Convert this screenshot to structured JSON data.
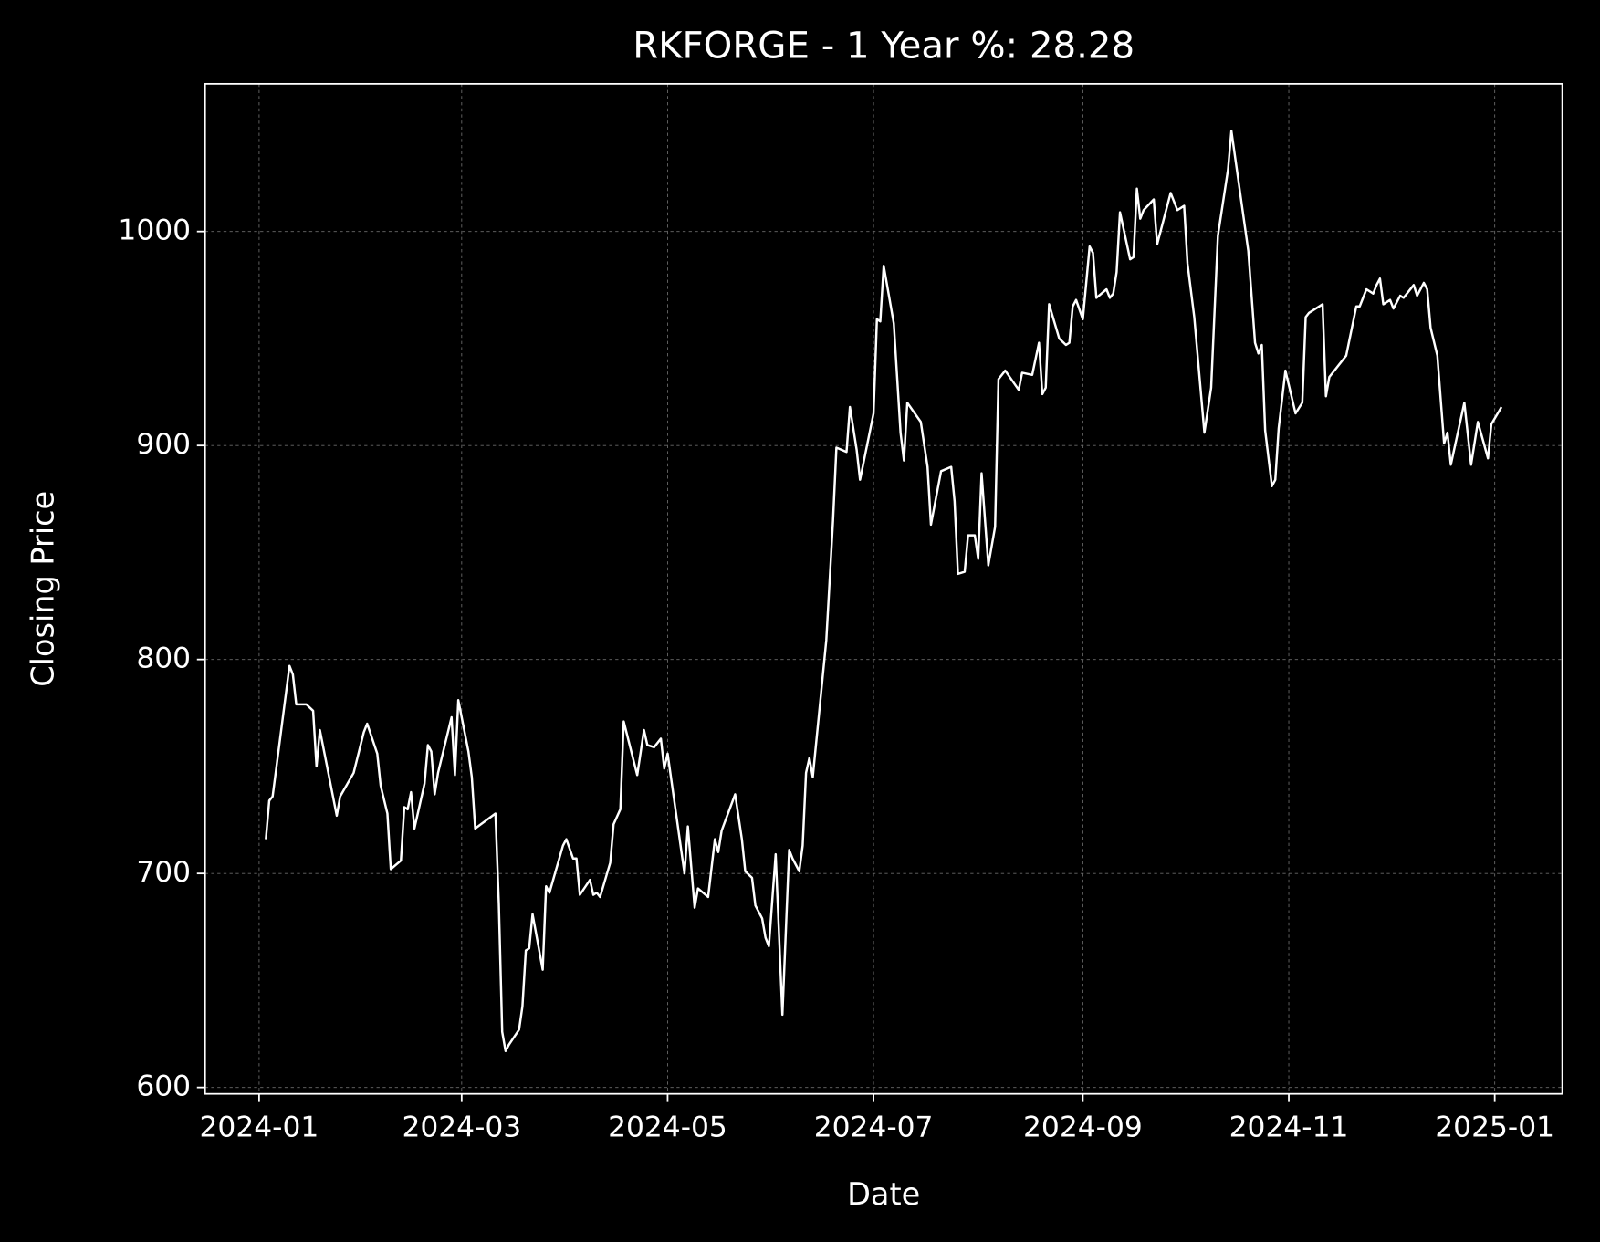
{
  "chart_data": {
    "type": "line",
    "title": "RKFORGE - 1 Year %: 28.28",
    "x_label": "Date",
    "y_label": "Closing Price",
    "color": "#ffffff",
    "grid": true,
    "xlim": [
      -16,
      386
    ],
    "ylim": [
      597,
      1069
    ],
    "xticks": [
      {
        "value": 0,
        "label": "2024-01"
      },
      {
        "value": 60,
        "label": "2024-03"
      },
      {
        "value": 121,
        "label": "2024-05"
      },
      {
        "value": 182,
        "label": "2024-07"
      },
      {
        "value": 244,
        "label": "2024-09"
      },
      {
        "value": 305,
        "label": "2024-11"
      },
      {
        "value": 366,
        "label": "2025-01"
      }
    ],
    "yticks": [
      600,
      700,
      800,
      900,
      1000
    ],
    "x": [
      2,
      3,
      4,
      9,
      10,
      11,
      14,
      16,
      17,
      18,
      23,
      24,
      28,
      31,
      32,
      35,
      36,
      38,
      39,
      42,
      43,
      44,
      45,
      46,
      49,
      50,
      51,
      52,
      53,
      57,
      58,
      59,
      62,
      63,
      64,
      70,
      71,
      72,
      73,
      74,
      77,
      78,
      79,
      80,
      81,
      84,
      85,
      86,
      90,
      91,
      93,
      94,
      95,
      98,
      99,
      100,
      101,
      104,
      105,
      107,
      108,
      112,
      114,
      115,
      117,
      119,
      120,
      121,
      126,
      127,
      129,
      130,
      133,
      135,
      136,
      137,
      141,
      143,
      144,
      146,
      147,
      149,
      150,
      151,
      153,
      155,
      157,
      158,
      160,
      161,
      162,
      163,
      164,
      168,
      170,
      171,
      174,
      175,
      177,
      178,
      182,
      183,
      184,
      185,
      188,
      190,
      191,
      192,
      196,
      198,
      199,
      202,
      205,
      206,
      207,
      209,
      210,
      212,
      213,
      214,
      216,
      218,
      219,
      221,
      225,
      226,
      229,
      231,
      232,
      233,
      234,
      237,
      239,
      240,
      241,
      242,
      244,
      246,
      247,
      248,
      251,
      252,
      253,
      254,
      255,
      258,
      259,
      260,
      261,
      262,
      265,
      266,
      270,
      272,
      274,
      275,
      277,
      280,
      282,
      284,
      287,
      288,
      293,
      295,
      296,
      297,
      298,
      300,
      301,
      302,
      304,
      307,
      309,
      310,
      311,
      315,
      316,
      317,
      322,
      325,
      326,
      328,
      330,
      331,
      332,
      333,
      335,
      336,
      338,
      339,
      342,
      343,
      345,
      346,
      347,
      349,
      351,
      352,
      353,
      357,
      359,
      361,
      364,
      365,
      368
    ],
    "values": [
      716,
      734,
      736,
      797,
      793,
      779,
      779,
      776,
      750,
      767,
      727,
      736,
      747,
      766,
      770,
      756,
      741,
      728,
      702,
      706,
      731,
      730,
      738,
      721,
      742,
      760,
      757,
      737,
      747,
      773,
      746,
      781,
      757,
      745,
      721,
      728,
      686,
      626,
      617,
      620,
      627,
      638,
      664,
      665,
      681,
      655,
      694,
      691,
      713,
      716,
      707,
      707,
      690,
      697,
      690,
      691,
      689,
      705,
      723,
      730,
      771,
      746,
      767,
      760,
      759,
      763,
      749,
      756,
      700,
      722,
      684,
      693,
      689,
      716,
      710,
      720,
      737,
      716,
      701,
      698,
      685,
      679,
      670,
      666,
      709,
      634,
      711,
      707,
      701,
      713,
      747,
      754,
      745,
      809,
      865,
      899,
      897,
      918,
      898,
      884,
      915,
      959,
      958,
      984,
      957,
      906,
      893,
      920,
      911,
      890,
      863,
      888,
      890,
      874,
      840,
      841,
      858,
      858,
      847,
      887,
      844,
      862,
      931,
      935,
      926,
      934,
      933,
      948,
      924,
      927,
      966,
      950,
      947,
      948,
      965,
      968,
      959,
      993,
      990,
      969,
      973,
      969,
      971,
      981,
      1009,
      987,
      988,
      1020,
      1006,
      1010,
      1015,
      994,
      1018,
      1010,
      1012,
      985,
      960,
      906,
      927,
      998,
      1029,
      1047,
      991,
      948,
      943,
      947,
      907,
      881,
      884,
      908,
      935,
      915,
      920,
      960,
      962,
      966,
      923,
      932,
      942,
      965,
      965,
      973,
      971,
      975,
      978,
      966,
      968,
      964,
      970,
      969,
      975,
      970,
      976,
      973,
      955,
      942,
      901,
      906,
      891,
      920,
      891,
      911,
      894,
      910,
      918
    ]
  }
}
